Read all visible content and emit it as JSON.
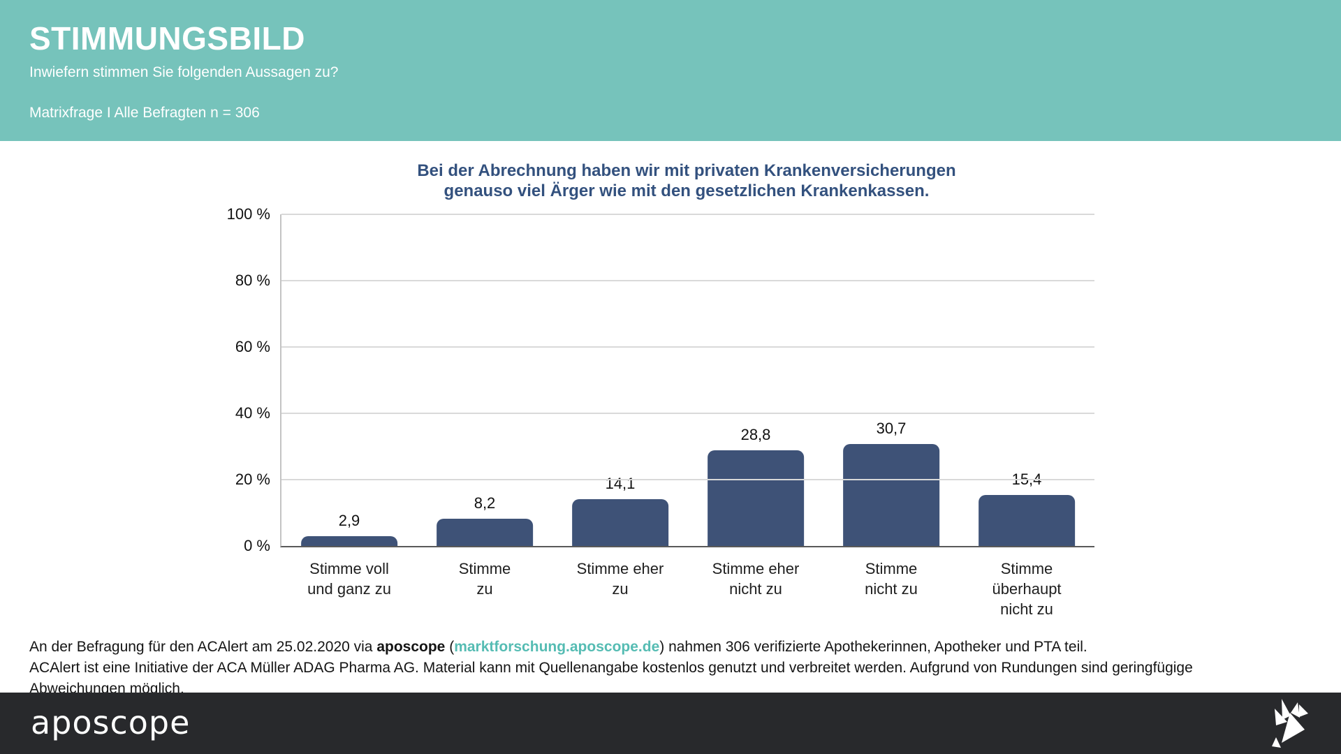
{
  "colors": {
    "header_bg": "#76C3BB",
    "chart_title": "#33517E",
    "bar": "#3E5277",
    "grid": "#D9D9D9",
    "axis_left": "#C4C4C4",
    "axis_bottom": "#595959",
    "link": "#55BCB3",
    "footer_bg": "#28292C"
  },
  "header": {
    "title": "STIMMUNGSBILD",
    "subtitle": "Inwiefern stimmen Sie folgenden Aussagen zu?",
    "meta": "Matrixfrage I Alle Befragten n = 306"
  },
  "chart_data": {
    "type": "bar",
    "title": "Bei der Abrechnung haben wir mit privaten Krankenversicherungen\ngenauso viel Ärger wie mit den gesetzlichen Krankenkassen.",
    "categories": [
      "Stimme voll\nund ganz zu",
      "Stimme\nzu",
      "Stimme eher\nzu",
      "Stimme eher\nnicht zu",
      "Stimme\nnicht zu",
      "Stimme\nüberhaupt\nnicht zu"
    ],
    "values": [
      2.9,
      8.2,
      14.1,
      28.8,
      30.7,
      15.4
    ],
    "value_labels": [
      "2,9",
      "8,2",
      "14,1",
      "28,8",
      "30,7",
      "15,4"
    ],
    "unit": "%",
    "ylim": [
      0,
      100
    ],
    "yticks": [
      0,
      20,
      40,
      60,
      80,
      100
    ],
    "ytick_labels": [
      "0 %",
      "20 %",
      "40 %",
      "60 %",
      "80 %",
      "100 %"
    ],
    "grid": true,
    "legend": false
  },
  "footnote": {
    "line1_part1": "An der Befragung für den ACAlert am 25.02.2020 via ",
    "line1_bold": "aposcope",
    "line1_part2": " (",
    "line1_link": "marktforschung.aposcope.de",
    "line1_part3": ") nahmen 306 verifizierte Apothekerinnen, Apotheker und PTA teil.",
    "line2": "ACAlert ist eine Initiative der ACA Müller ADAG Pharma AG. Material kann mit Quellenangabe kostenlos genutzt und verbreitet werden. Aufgrund von Rundungen sind geringfügige Abweichungen möglich."
  },
  "footer": {
    "logo_text": "aposcope",
    "logo_icon": "origami-bird-icon"
  }
}
